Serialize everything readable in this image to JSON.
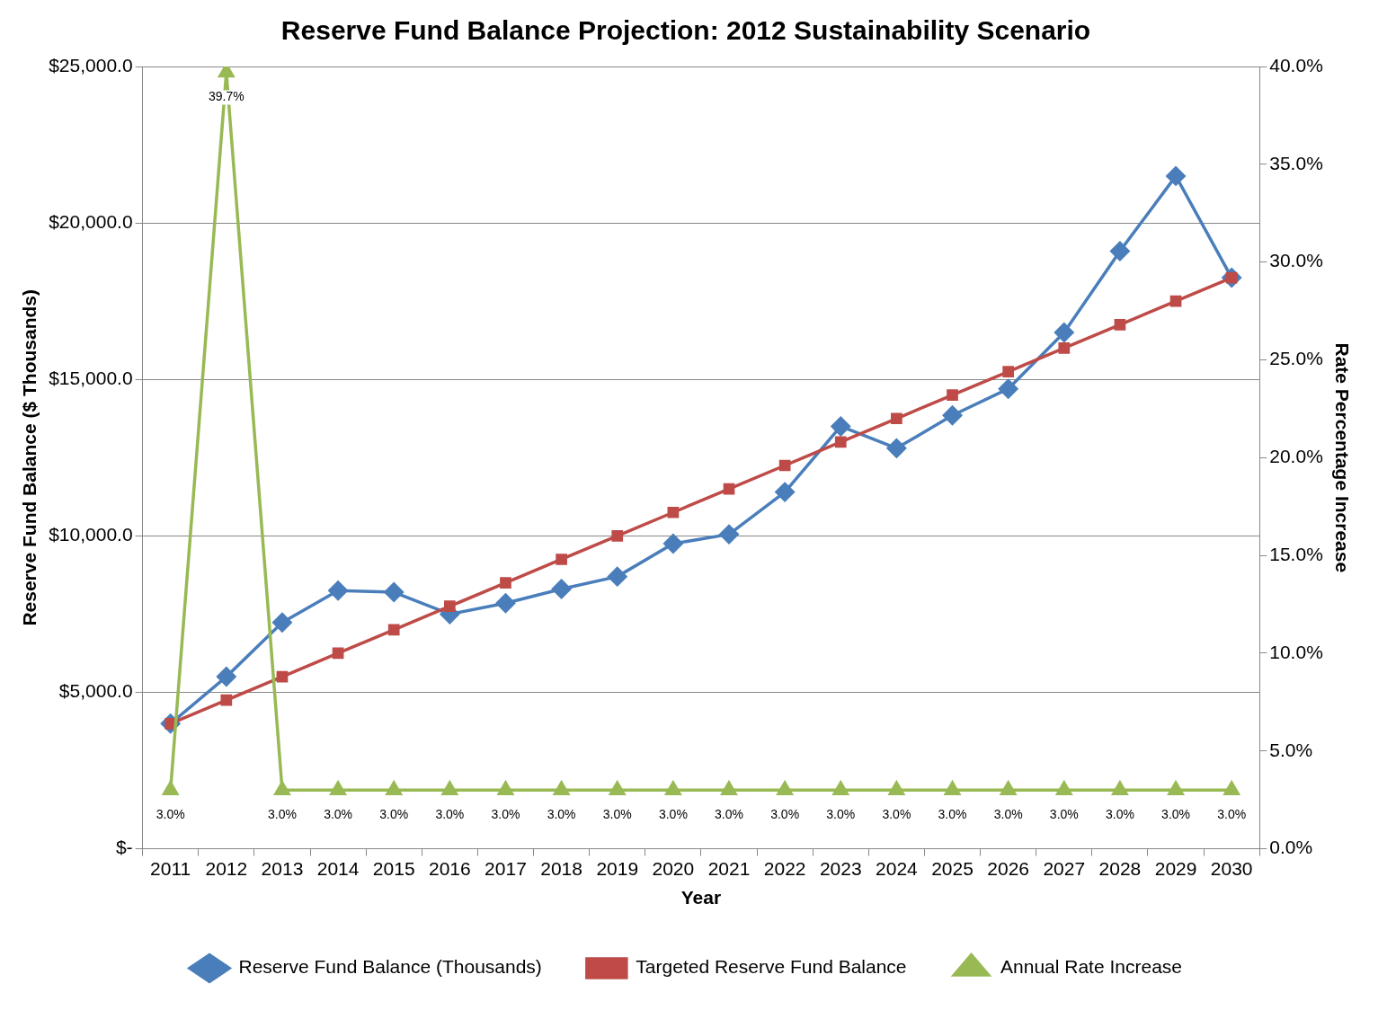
{
  "chart_data": {
    "type": "line",
    "title": "Reserve Fund Balance Projection: 2012 Sustainability Scenario",
    "xlabel": "Year",
    "ylabel": "Reserve Fund Balance ($ Thousands)",
    "y2label": "Rate Percentage Increase",
    "categories": [
      "2011",
      "2012",
      "2013",
      "2014",
      "2015",
      "2016",
      "2017",
      "2018",
      "2019",
      "2020",
      "2021",
      "2022",
      "2023",
      "2024",
      "2025",
      "2026",
      "2027",
      "2028",
      "2029",
      "2030"
    ],
    "series": [
      {
        "name": "Reserve Fund Balance (Thousands)",
        "color": "#4a7ebb",
        "marker": "diamond",
        "values": [
          4000,
          5500,
          7230,
          8250,
          8200,
          7500,
          7850,
          8300,
          8700,
          9750,
          10050,
          11400,
          13500,
          12800,
          13850,
          14700,
          16500,
          19100,
          21500,
          18250
        ]
      },
      {
        "name": "Targeted Reserve Fund Balance",
        "color": "#be4b48",
        "marker": "square",
        "values": [
          4000,
          4750,
          5500,
          6250,
          7000,
          7750,
          8500,
          9250,
          10000,
          10750,
          11500,
          12250,
          13000,
          13750,
          14500,
          15250,
          16000,
          16750,
          17500,
          18250
        ]
      },
      {
        "name": "Annual Rate Increase",
        "color": "#98b954",
        "marker": "triangle",
        "axis": "y2",
        "values": [
          3.0,
          39.7,
          3.0,
          3.0,
          3.0,
          3.0,
          3.0,
          3.0,
          3.0,
          3.0,
          3.0,
          3.0,
          3.0,
          3.0,
          3.0,
          3.0,
          3.0,
          3.0,
          3.0,
          3.0
        ],
        "value_labels": [
          "3.0%",
          "39.7%",
          "3.0%",
          "3.0%",
          "3.0%",
          "3.0%",
          "3.0%",
          "3.0%",
          "3.0%",
          "3.0%",
          "3.0%",
          "3.0%",
          "3.0%",
          "3.0%",
          "3.0%",
          "3.0%",
          "3.0%",
          "3.0%",
          "3.0%",
          "3.0%"
        ]
      }
    ],
    "ylim": [
      0,
      25000
    ],
    "yticks": [
      {
        "value": 0,
        "label": "$-"
      },
      {
        "value": 5000,
        "label": "$5,000.0"
      },
      {
        "value": 10000,
        "label": "$10,000.0"
      },
      {
        "value": 15000,
        "label": "$15,000.0"
      },
      {
        "value": 20000,
        "label": "$20,000.0"
      },
      {
        "value": 25000,
        "label": "$25,000.0"
      }
    ],
    "y2lim": [
      0,
      40
    ],
    "y2ticks": [
      {
        "value": 0,
        "label": "0.0%"
      },
      {
        "value": 5,
        "label": "5.0%"
      },
      {
        "value": 10,
        "label": "10.0%"
      },
      {
        "value": 15,
        "label": "15.0%"
      },
      {
        "value": 20,
        "label": "20.0%"
      },
      {
        "value": 25,
        "label": "25.0%"
      },
      {
        "value": 30,
        "label": "30.0%"
      },
      {
        "value": 35,
        "label": "35.0%"
      },
      {
        "value": 40,
        "label": "40.0%"
      }
    ],
    "grid": "y",
    "legend": "bottom",
    "line_style": "solid"
  }
}
